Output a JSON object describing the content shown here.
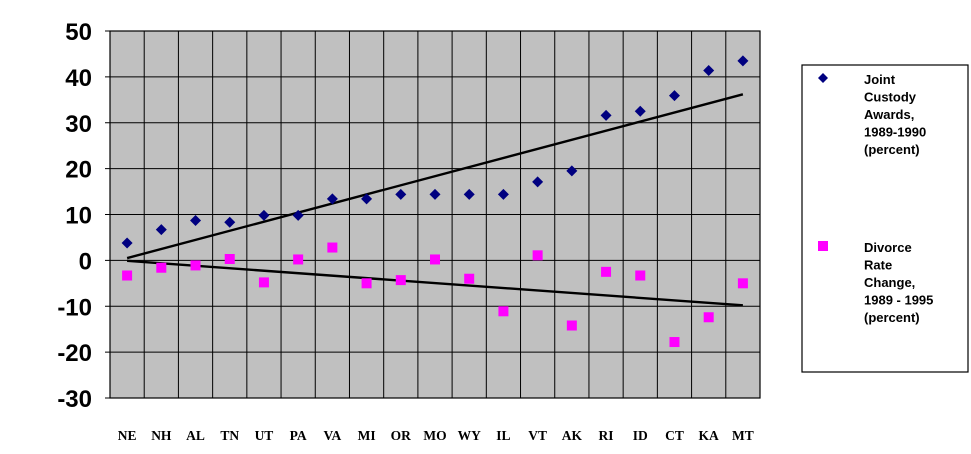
{
  "chart_data": {
    "type": "scatter",
    "title": "",
    "xlabel": "",
    "ylabel": "",
    "categories": [
      "NE",
      "NH",
      "AL",
      "TN",
      "UT",
      "PA",
      "VA",
      "MI",
      "OR",
      "MO",
      "WY",
      "IL",
      "VT",
      "AK",
      "RI",
      "ID",
      "CT",
      "KA",
      "MT"
    ],
    "ylim": [
      -30,
      50
    ],
    "yticks": [
      "50",
      "40",
      "30",
      "20",
      "10",
      "0",
      "-10",
      "-20",
      "-30"
    ],
    "grid": true,
    "legend_position": "right",
    "plot_background": "#c0c0c0",
    "series": [
      {
        "name": "Joint Custody Awards, 1989-1990 (percent)",
        "legend_lines": [
          "Joint",
          "Custody",
          "Awards,",
          "1989-1990",
          "(percent)"
        ],
        "marker": "diamond",
        "color": "#000080",
        "values": [
          3.8,
          6.7,
          8.7,
          8.3,
          9.8,
          9.8,
          13.4,
          13.4,
          14.4,
          14.4,
          14.4,
          14.4,
          17.1,
          19.5,
          31.6,
          32.5,
          35.9,
          41.4,
          43.5
        ],
        "trendline": [
          0.5,
          36.2
        ]
      },
      {
        "name": "Divorce Rate Change, 1989 - 1995 (percent)",
        "legend_lines": [
          "Divorce",
          "Rate",
          "Change,",
          "1989 - 1995",
          "(percent)"
        ],
        "marker": "square",
        "color": "#ff00ff",
        "values": [
          -3.3,
          -1.6,
          -1.1,
          0.3,
          -4.8,
          0.2,
          2.8,
          -5.0,
          -4.3,
          0.2,
          -4.0,
          -11.1,
          1.1,
          -14.2,
          -2.5,
          -3.3,
          -17.8,
          -12.4,
          -5.0
        ],
        "trendline": [
          -0.1,
          -9.8
        ]
      }
    ]
  }
}
